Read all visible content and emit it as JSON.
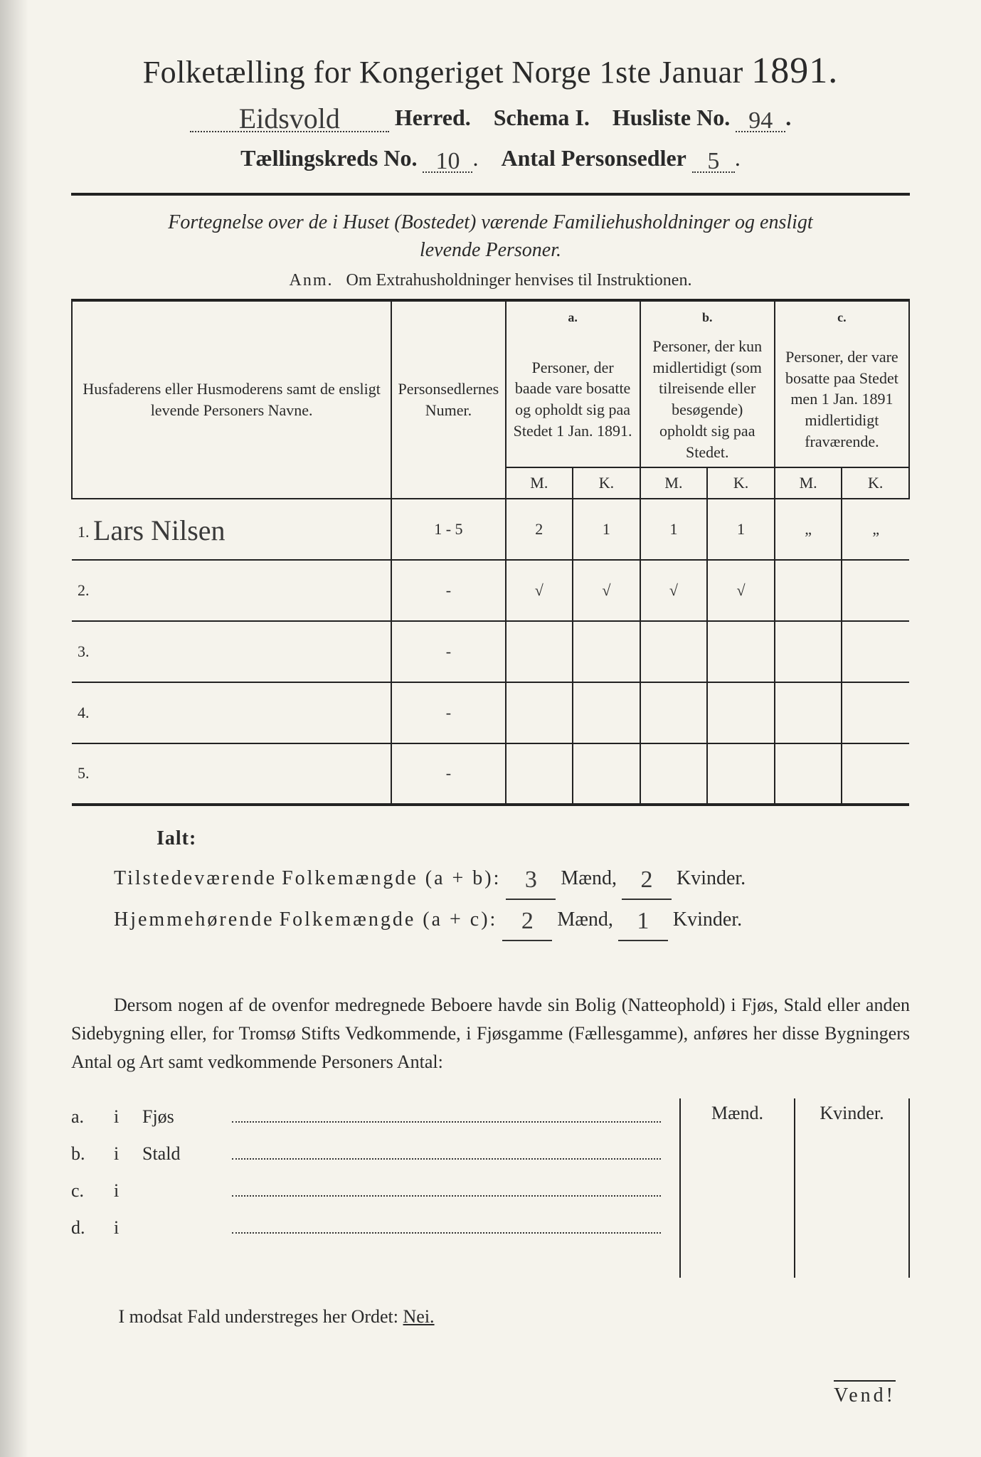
{
  "title": {
    "main": "Folketælling for Kongeriget Norge 1ste Januar",
    "year": "1891."
  },
  "line2": {
    "herred_hand": "Eidsvold",
    "herred_label": "Herred.",
    "schema": "Schema I.",
    "husliste_label": "Husliste No.",
    "husliste_no": "94"
  },
  "line3": {
    "kreds_label": "Tællingskreds No.",
    "kreds_no": "10",
    "antal_label": "Antal Personsedler",
    "antal_no": "5"
  },
  "subtitle": "Fortegnelse over de i Huset (Bostedet) værende Familiehusholdninger og ensligt levende Personer.",
  "anm": {
    "prefix": "Anm.",
    "text": "Om Extrahusholdninger henvises til Instruktionen."
  },
  "table": {
    "head": {
      "col1": "Husfaderens eller Husmoderens samt de ensligt levende Personers Navne.",
      "col2": "Personsedlernes Numer.",
      "a_label": "a.",
      "a_text": "Personer, der baade vare bosatte og opholdt sig paa Stedet 1 Jan. 1891.",
      "b_label": "b.",
      "b_text": "Personer, der kun midlertidigt (som tilreisende eller besøgende) opholdt sig paa Stedet.",
      "c_label": "c.",
      "c_text": "Personer, der vare bosatte paa Stedet men 1 Jan. 1891 midlertidigt fraværende.",
      "M": "M.",
      "K": "K."
    },
    "rows": [
      {
        "n": "1.",
        "name": "Lars Nilsen",
        "num": "1 - 5",
        "aM": "2",
        "aK": "1",
        "bM": "1",
        "bK": "1",
        "cM": "„",
        "cK": "„"
      },
      {
        "n": "2.",
        "name": "",
        "num": "-",
        "aM": "√",
        "aK": "√",
        "bM": "√",
        "bK": "√",
        "cM": "",
        "cK": ""
      },
      {
        "n": "3.",
        "name": "",
        "num": "-",
        "aM": "",
        "aK": "",
        "bM": "",
        "bK": "",
        "cM": "",
        "cK": ""
      },
      {
        "n": "4.",
        "name": "",
        "num": "-",
        "aM": "",
        "aK": "",
        "bM": "",
        "bK": "",
        "cM": "",
        "cK": ""
      },
      {
        "n": "5.",
        "name": "",
        "num": "-",
        "aM": "",
        "aK": "",
        "bM": "",
        "bK": "",
        "cM": "",
        "cK": ""
      }
    ]
  },
  "ialt_label": "Ialt:",
  "sums": {
    "line1_a": "Tilstedeværende",
    "line1_b": "Folkemængde (a + b):",
    "line1_m": "3",
    "line1_k": "2",
    "line2_a": "Hjemmehørende",
    "line2_b": "Folkemængde (a + c):",
    "line2_m": "2",
    "line2_k": "1",
    "maend": "Mænd,",
    "kvinder": "Kvinder."
  },
  "para": "Dersom nogen af de ovenfor medregnede Beboere havde sin Bolig (Natteophold) i Fjøs, Stald eller anden Sidebygning eller, for Tromsø Stifts Vedkommende, i Fjøsgamme (Fællesgamme), anføres her disse Bygningers Antal og Art samt vedkommende Personers Antal:",
  "outbuild": {
    "rows": [
      {
        "l": "a.",
        "i": "i",
        "name": "Fjøs"
      },
      {
        "l": "b.",
        "i": "i",
        "name": "Stald"
      },
      {
        "l": "c.",
        "i": "i",
        "name": ""
      },
      {
        "l": "d.",
        "i": "i",
        "name": ""
      }
    ],
    "maend": "Mænd.",
    "kvinder": "Kvinder."
  },
  "nei": {
    "pre": "I modsat Fald understreges her Ordet:",
    "word": "Nei."
  },
  "vend": "Vend!"
}
